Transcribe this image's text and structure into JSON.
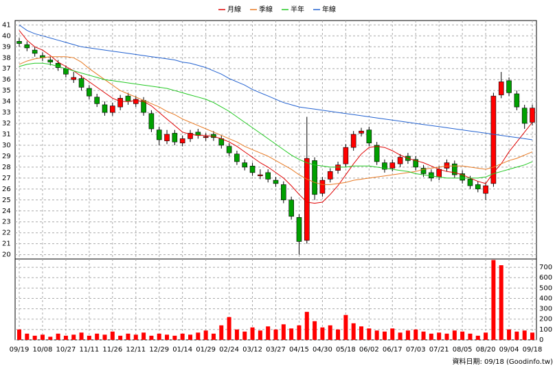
{
  "chart_data": [
    {
      "type": "candlestick",
      "categories": [
        "09/19",
        null,
        null,
        "10/08",
        null,
        null,
        "10/27",
        null,
        null,
        "11/11",
        null,
        null,
        "11/26",
        null,
        null,
        "12/11",
        null,
        null,
        "12/29",
        null,
        null,
        "01/14",
        null,
        null,
        "01/29",
        null,
        null,
        "02/24",
        null,
        null,
        "03/12",
        null,
        null,
        "03/27",
        null,
        null,
        "04/15",
        null,
        null,
        "04/30",
        null,
        null,
        "05/18",
        null,
        null,
        "06/02",
        null,
        null,
        "06/17",
        null,
        null,
        "07/03",
        null,
        null,
        "07/21",
        null,
        null,
        "08/05",
        null,
        null,
        "08/20",
        null,
        null,
        "09/04",
        null,
        null,
        "09/18"
      ],
      "open": [
        39.5,
        39.2,
        38.7,
        38.2,
        37.8,
        37.5,
        37.0,
        36.0,
        36.1,
        35.2,
        34.4,
        33.7,
        33.0,
        33.5,
        34.5,
        33.8,
        34.1,
        32.9,
        31.4,
        30.4,
        31.1,
        30.2,
        30.6,
        31.2,
        30.7,
        31.0,
        30.6,
        29.9,
        29.2,
        28.4,
        28.1,
        27.2,
        27.5,
        26.8,
        26.4,
        25.0,
        23.4,
        21.3,
        28.6,
        25.6,
        26.9,
        27.7,
        28.3,
        29.8,
        31.1,
        31.4,
        30.0,
        28.4,
        27.9,
        28.3,
        29.0,
        28.7,
        27.9,
        27.5,
        27.1,
        27.9,
        28.3,
        27.4,
        26.9,
        26.4,
        25.6,
        26.5,
        34.6,
        35.9,
        34.7,
        33.4,
        32.1
      ],
      "high": [
        39.8,
        39.5,
        39.0,
        38.5,
        38.1,
        37.8,
        37.3,
        36.7,
        36.4,
        35.5,
        34.7,
        34.0,
        33.9,
        34.6,
        34.8,
        34.5,
        34.4,
        33.2,
        31.7,
        31.4,
        31.4,
        30.9,
        31.4,
        31.5,
        31.1,
        31.3,
        30.9,
        30.2,
        29.5,
        28.7,
        28.4,
        27.8,
        27.8,
        27.1,
        26.7,
        25.3,
        23.7,
        32.6,
        28.9,
        27.1,
        27.9,
        28.5,
        30.1,
        31.3,
        31.6,
        31.7,
        30.3,
        28.7,
        28.7,
        29.2,
        29.3,
        29.0,
        28.2,
        27.8,
        28.1,
        28.7,
        28.6,
        27.7,
        27.2,
        26.7,
        26.6,
        34.8,
        36.7,
        36.2,
        35.0,
        33.7,
        33.7
      ],
      "low": [
        39.0,
        38.6,
        38.1,
        37.7,
        37.3,
        36.8,
        36.2,
        35.7,
        35.0,
        34.2,
        33.5,
        32.7,
        32.7,
        33.2,
        33.7,
        33.5,
        32.7,
        31.2,
        30.0,
        30.1,
        30.0,
        29.9,
        30.3,
        30.6,
        30.4,
        30.4,
        29.7,
        29.0,
        28.2,
        27.7,
        27.2,
        26.9,
        26.6,
        26.2,
        24.7,
        23.2,
        20.0,
        21.0,
        25.0,
        25.3,
        26.6,
        27.4,
        28.0,
        29.5,
        30.8,
        29.9,
        28.2,
        27.5,
        27.6,
        28.0,
        28.3,
        27.7,
        27.1,
        26.7,
        26.8,
        27.6,
        27.0,
        26.5,
        26.0,
        25.7,
        25.0,
        26.2,
        34.3,
        34.5,
        33.2,
        31.5,
        31.8
      ],
      "close": [
        39.3,
        38.9,
        38.4,
        38.0,
        37.6,
        37.1,
        36.5,
        36.2,
        35.3,
        34.5,
        33.8,
        33.0,
        33.6,
        34.3,
        34.0,
        34.2,
        33.0,
        31.5,
        30.5,
        31.0,
        30.3,
        30.6,
        31.1,
        30.9,
        30.8,
        30.7,
        30.0,
        29.3,
        28.5,
        28.0,
        27.5,
        27.3,
        26.9,
        26.5,
        25.0,
        23.5,
        21.2,
        28.8,
        25.5,
        26.8,
        27.6,
        28.2,
        29.8,
        31.0,
        31.3,
        30.2,
        28.5,
        27.8,
        28.4,
        28.9,
        28.6,
        28.0,
        27.4,
        27.0,
        27.8,
        28.4,
        27.3,
        26.8,
        26.3,
        26.0,
        26.3,
        34.5,
        35.8,
        34.8,
        33.5,
        32.0,
        33.4
      ],
      "up_color": "#ff0000",
      "down_color": "#00a000",
      "series": [
        {
          "name": "月線",
          "color": "#e00000",
          "values": [
            40.5,
            39.6,
            39.0,
            38.7,
            38.2,
            37.6,
            37.2,
            36.8,
            36.3,
            35.8,
            35.3,
            34.8,
            34.3,
            34.0,
            34.0,
            34.1,
            34.0,
            33.6,
            33.0,
            32.4,
            31.8,
            31.2,
            31.0,
            30.9,
            30.9,
            30.8,
            30.6,
            30.3,
            29.9,
            29.4,
            28.9,
            28.4,
            28.0,
            27.5,
            27.0,
            26.3,
            25.5,
            24.8,
            24.7,
            24.8,
            25.5,
            26.3,
            27.3,
            28.3,
            29.2,
            29.8,
            29.9,
            29.8,
            29.5,
            29.1,
            28.8,
            28.6,
            28.4,
            28.1,
            27.8,
            27.6,
            27.5,
            27.3,
            27.0,
            26.7,
            26.5,
            27.5,
            28.3,
            29.4,
            30.3,
            31.2,
            32.1
          ]
        },
        {
          "name": "季線",
          "color": "#e87820",
          "values": [
            37.4,
            37.7,
            37.9,
            38.0,
            38.1,
            38.1,
            38.1,
            38.0,
            37.6,
            37.0,
            36.5,
            36.0,
            35.5,
            35.0,
            34.7,
            34.4,
            34.1,
            33.8,
            33.5,
            33.1,
            32.8,
            32.4,
            32.1,
            31.8,
            31.5,
            31.2,
            30.9,
            30.6,
            30.3,
            29.9,
            29.6,
            29.3,
            29.0,
            28.6,
            28.2,
            27.8,
            27.3,
            26.9,
            26.6,
            26.4,
            26.4,
            26.5,
            26.6,
            26.8,
            26.9,
            27.0,
            27.1,
            27.2,
            27.3,
            27.4,
            27.5,
            27.6,
            27.8,
            27.9,
            28.0,
            28.1,
            28.1,
            28.1,
            28.0,
            27.9,
            27.8,
            28.0,
            28.3,
            28.6,
            28.8,
            29.1,
            29.4
          ]
        },
        {
          "name": "半年",
          "color": "#20c820",
          "values": [
            37.2,
            37.4,
            37.5,
            37.5,
            37.4,
            37.2,
            37.0,
            36.8,
            36.6,
            36.4,
            36.2,
            36.0,
            35.9,
            35.8,
            35.7,
            35.6,
            35.5,
            35.4,
            35.3,
            35.2,
            35.0,
            34.8,
            34.6,
            34.4,
            34.2,
            33.9,
            33.5,
            33.1,
            32.6,
            32.1,
            31.6,
            31.1,
            30.6,
            30.1,
            29.6,
            29.1,
            28.7,
            28.4,
            28.2,
            28.1,
            28.0,
            28.0,
            28.0,
            28.1,
            28.1,
            28.1,
            28.0,
            27.9,
            27.8,
            27.7,
            27.6,
            27.4,
            27.3,
            27.2,
            27.1,
            27.0,
            27.0,
            27.0,
            27.0,
            27.0,
            27.1,
            27.4,
            27.6,
            27.8,
            28.0,
            28.2,
            28.5
          ]
        },
        {
          "name": "年線",
          "color": "#2060d0",
          "values": [
            41.0,
            40.5,
            40.2,
            40.0,
            39.8,
            39.6,
            39.4,
            39.2,
            39.0,
            38.9,
            38.8,
            38.7,
            38.6,
            38.5,
            38.4,
            38.3,
            38.2,
            38.1,
            38.0,
            37.9,
            37.8,
            37.6,
            37.5,
            37.3,
            37.1,
            36.8,
            36.5,
            36.1,
            35.8,
            35.5,
            35.1,
            34.8,
            34.5,
            34.2,
            33.9,
            33.7,
            33.5,
            33.4,
            33.3,
            33.2,
            33.1,
            33.0,
            32.9,
            32.8,
            32.7,
            32.6,
            32.5,
            32.4,
            32.3,
            32.2,
            32.1,
            32.0,
            31.9,
            31.8,
            31.7,
            31.6,
            31.5,
            31.4,
            31.3,
            31.2,
            31.1,
            31.0,
            30.9,
            30.8,
            30.7,
            30.6,
            30.5
          ]
        }
      ],
      "ylim": [
        19.6,
        41.4
      ],
      "yticks": [
        20,
        21,
        22,
        23,
        24,
        25,
        26,
        27,
        28,
        29,
        30,
        31,
        32,
        33,
        34,
        35,
        36,
        37,
        38,
        39,
        40,
        41
      ],
      "grid": true
    },
    {
      "type": "bar",
      "color": "#ff0000",
      "values": [
        100,
        60,
        40,
        50,
        30,
        60,
        40,
        50,
        70,
        40,
        60,
        50,
        80,
        40,
        60,
        50,
        70,
        40,
        60,
        50,
        40,
        60,
        50,
        70,
        90,
        60,
        140,
        220,
        100,
        80,
        120,
        90,
        130,
        100,
        150,
        110,
        140,
        270,
        180,
        120,
        140,
        100,
        240,
        160,
        130,
        110,
        90,
        80,
        110,
        70,
        90,
        100,
        80,
        60,
        70,
        60,
        90,
        80,
        60,
        40,
        70,
        770,
        720,
        100,
        80,
        90,
        70
      ],
      "ylim": [
        0,
        780
      ],
      "yticks": [
        0,
        100,
        200,
        300,
        400,
        500,
        600,
        700
      ],
      "grid": true
    }
  ],
  "footer": "資料日期: 09/18 (Goodinfo.tw)"
}
